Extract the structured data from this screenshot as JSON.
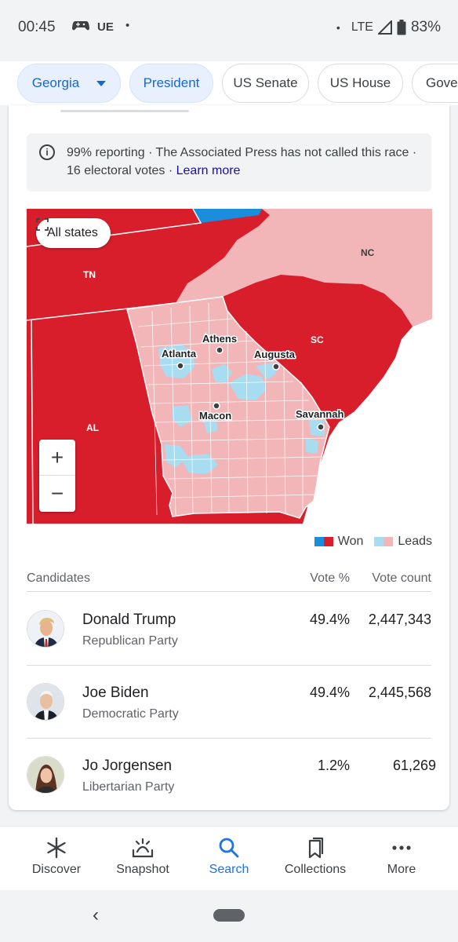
{
  "status_bar": {
    "time": "00:45",
    "carrier": "UE",
    "dot": "•",
    "network": "LTE",
    "battery": "83%"
  },
  "chips": [
    {
      "label": "Georgia",
      "active": true
    },
    {
      "label": "President",
      "active": true
    },
    {
      "label": "US Senate",
      "active": false
    },
    {
      "label": "US House",
      "active": false
    },
    {
      "label": "Gover",
      "active": false
    }
  ],
  "info": {
    "text": "99% reporting · The Associated Press has not called this race · 16 electoral votes · ",
    "link": "Learn more"
  },
  "map": {
    "all_states_label": "All states",
    "states": [
      "TN",
      "NC",
      "SC",
      "AL"
    ],
    "cities": [
      "Athens",
      "Atlanta",
      "Augusta",
      "Macon",
      "Savannah"
    ],
    "zoom_in": "+",
    "zoom_out": "−",
    "colors": {
      "rep_won": "#d91e2b",
      "rep_leads": "#f2b6b9",
      "dem_won": "#1a8ddb",
      "dem_leads": "#a8dcf0"
    }
  },
  "legend": {
    "won": "Won",
    "leads": "Leads"
  },
  "table": {
    "headers": {
      "candidates": "Candidates",
      "vote_pct": "Vote %",
      "vote_count": "Vote count"
    },
    "rows": [
      {
        "name": "Donald Trump",
        "party": "Republican Party",
        "pct": "49.4%",
        "count": "2,447,343"
      },
      {
        "name": "Joe Biden",
        "party": "Democratic Party",
        "pct": "49.4%",
        "count": "2,445,568"
      },
      {
        "name": "Jo Jorgensen",
        "party": "Libertarian Party",
        "pct": "1.2%",
        "count": "61,269"
      }
    ]
  },
  "bottom_nav": [
    {
      "label": "Discover",
      "icon": "asterisk-icon"
    },
    {
      "label": "Snapshot",
      "icon": "snapshot-icon"
    },
    {
      "label": "Search",
      "icon": "search-icon",
      "active": true
    },
    {
      "label": "Collections",
      "icon": "bookmarks-icon"
    },
    {
      "label": "More",
      "icon": "more-icon"
    }
  ],
  "system_nav": {
    "back": "‹"
  }
}
